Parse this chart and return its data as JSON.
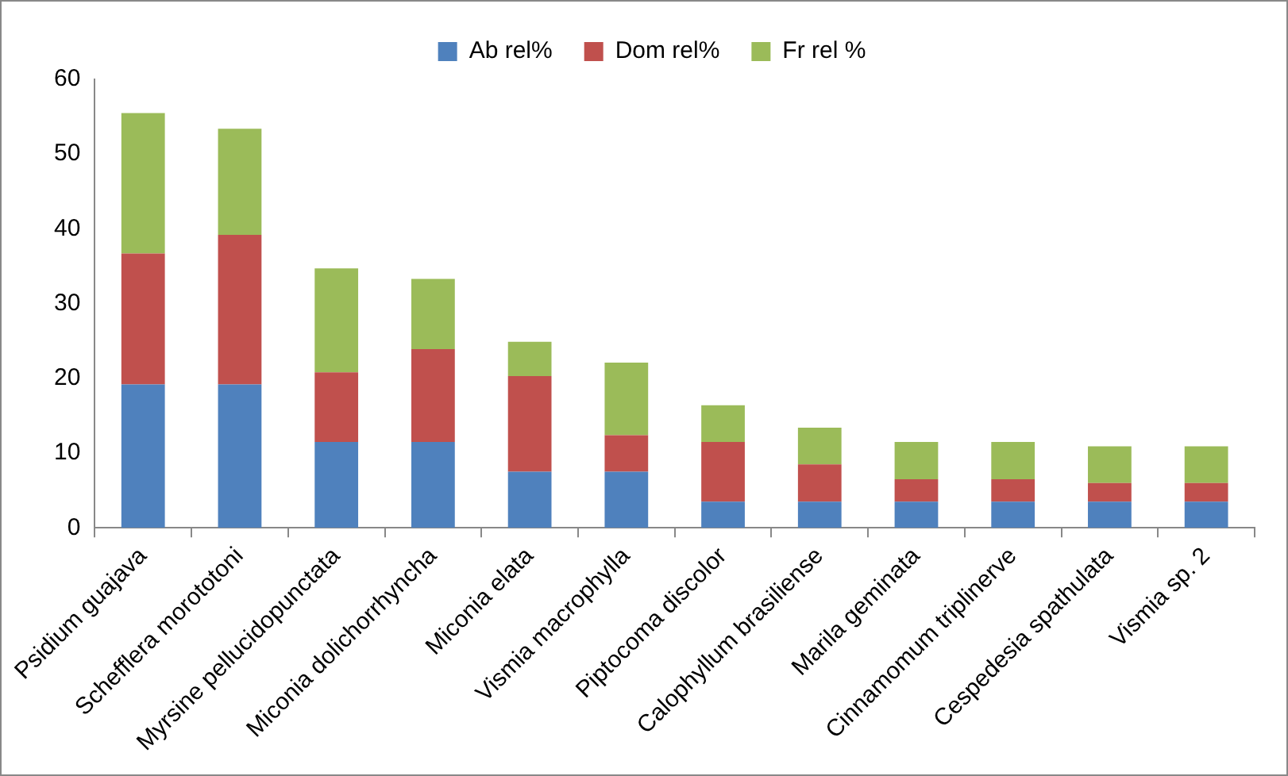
{
  "chart_data": {
    "type": "bar",
    "stacked": true,
    "categories": [
      "Psidium guajava",
      "Schefflera morototoni",
      "Myrsine pellucidopunctata",
      "Miconia dolichorrhyncha",
      "Miconia elata",
      "Vismia macrophylla",
      "Piptocoma discolor",
      "Calophyllum brasiliense",
      "Marila geminata",
      "Cinnamomum triplinerve",
      "Cespedesia spathulata",
      "Vismia sp. 2"
    ],
    "series": [
      {
        "name": "Ab rel%",
        "color": "#4f81bd",
        "values": [
          19.2,
          19.2,
          11.5,
          11.5,
          7.5,
          7.5,
          3.5,
          3.5,
          3.5,
          3.5,
          3.5,
          3.5
        ]
      },
      {
        "name": "Dom rel%",
        "color": "#c0504d",
        "values": [
          17.5,
          20.0,
          9.3,
          12.4,
          12.8,
          4.9,
          8.0,
          5.0,
          3.0,
          3.0,
          2.5,
          2.5
        ]
      },
      {
        "name": "Fr rel %",
        "color": "#9bbb59",
        "values": [
          18.8,
          14.2,
          13.9,
          9.4,
          4.6,
          9.7,
          4.9,
          4.9,
          5.0,
          5.0,
          4.9,
          4.9
        ]
      }
    ],
    "ylim": [
      0,
      60
    ],
    "yticks": [
      0,
      10,
      20,
      30,
      40,
      50,
      60
    ],
    "grid": false,
    "legend": "top"
  }
}
